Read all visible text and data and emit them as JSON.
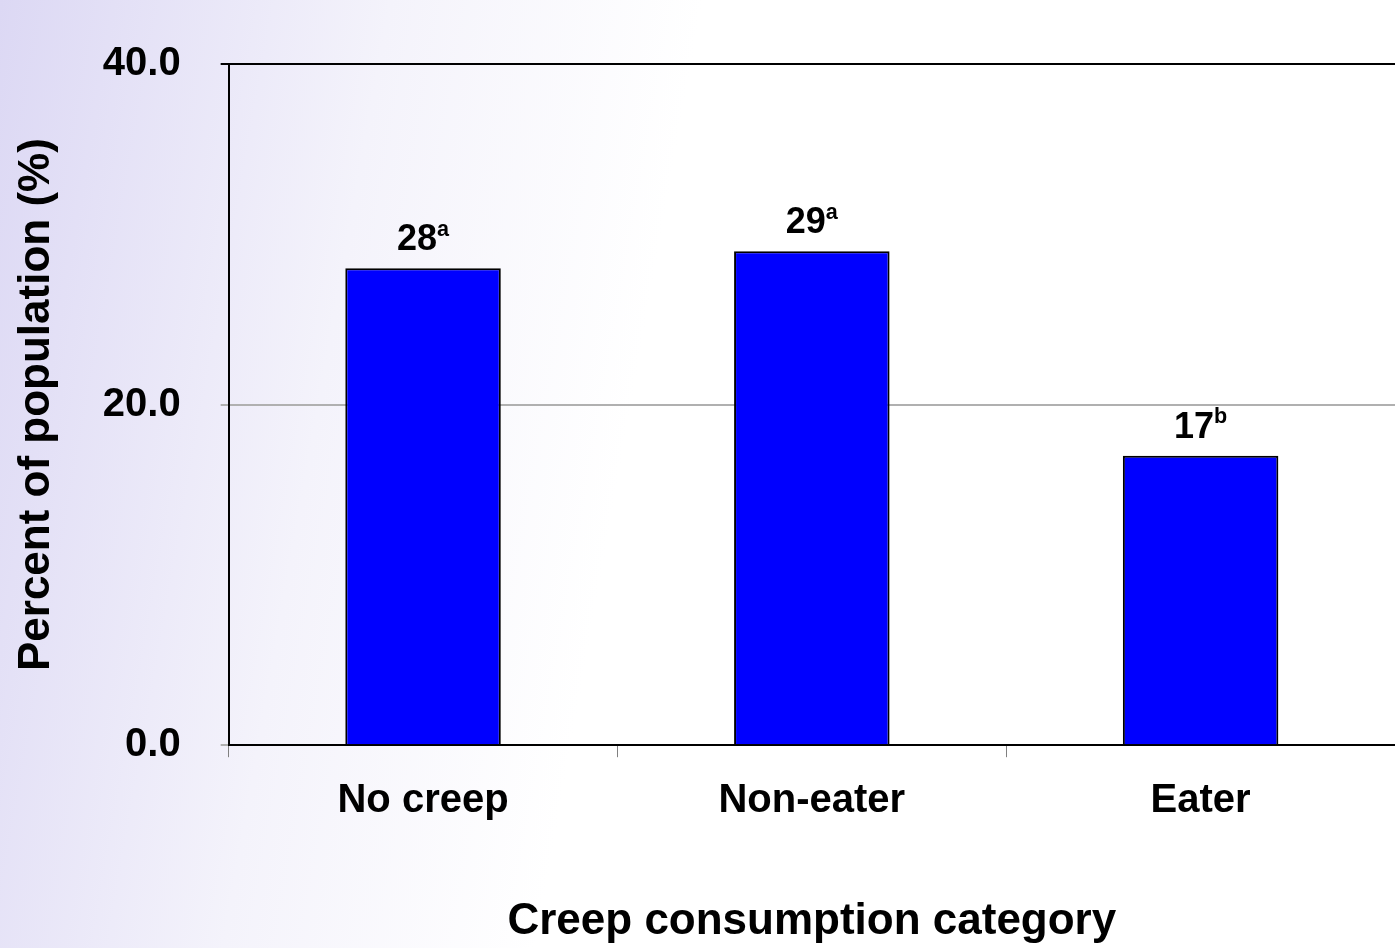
{
  "chart_data": {
    "type": "bar",
    "xlabel": "Creep consumption category",
    "ylabel": "Percent of population (%)",
    "categories": [
      "No creep",
      "Non-eater",
      "Eater"
    ],
    "values": [
      28,
      29,
      17
    ],
    "value_labels": [
      "28$^{a}$",
      "29$^{a}$",
      "17$^{b}$"
    ],
    "color": "#0000ff",
    "ylim": [
      0,
      40
    ],
    "yticks": [
      {
        "value": 0,
        "label": "0.0"
      },
      {
        "value": 20,
        "label": "20.0"
      },
      {
        "value": 40,
        "label": "40.0"
      }
    ],
    "grid": "y",
    "legend": false
  }
}
